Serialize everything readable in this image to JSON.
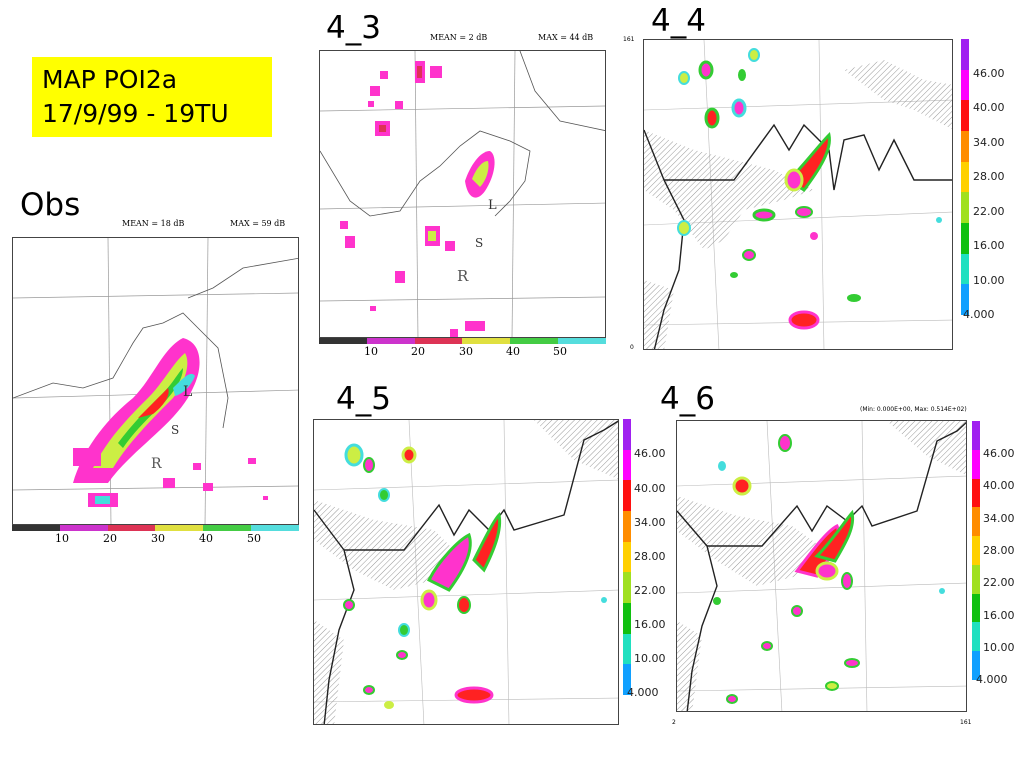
{
  "title": {
    "line1": "MAP POI2a",
    "line2": "17/9/99 - 19TU"
  },
  "obs": {
    "label": "Obs",
    "mean": "MEAN =  18 dB",
    "max": "MAX =  59 dB",
    "ticks": [
      "10",
      "20",
      "30",
      "40",
      "50"
    ],
    "letters": {
      "r": "R",
      "l": "L",
      "s": "S"
    }
  },
  "p43": {
    "label": "4_3",
    "mean": "MEAN =   2 dB",
    "max": "MAX =  44 dB",
    "ticks": [
      "10",
      "20",
      "30",
      "40",
      "50"
    ],
    "letters": {
      "r": "R",
      "l": "L",
      "s": "S"
    }
  },
  "p44": {
    "label": "4_4",
    "corner_tl": "161",
    "corner_bl": "0"
  },
  "p45": {
    "label": "4_5"
  },
  "p46": {
    "label": "4_6",
    "minmax": "(Min: 0.000E+00, Max: 0.514E+02)",
    "corner_bl": "2",
    "corner_br": "161"
  },
  "colorbar": {
    "ticks": [
      "46.00",
      "40.00",
      "34.00",
      "28.00",
      "22.00",
      "16.00",
      "10.00",
      "4.000"
    ],
    "colors": [
      "#a020f0",
      "#ff00ff",
      "#ff1010",
      "#ff8c00",
      "#ffd000",
      "#a0e020",
      "#10c010",
      "#20e0c0",
      "#10a0ff"
    ]
  },
  "hbar_colors": [
    "#333333",
    "#cc33cc",
    "#dd3355",
    "#e0e040",
    "#44cc44",
    "#55dddd"
  ]
}
